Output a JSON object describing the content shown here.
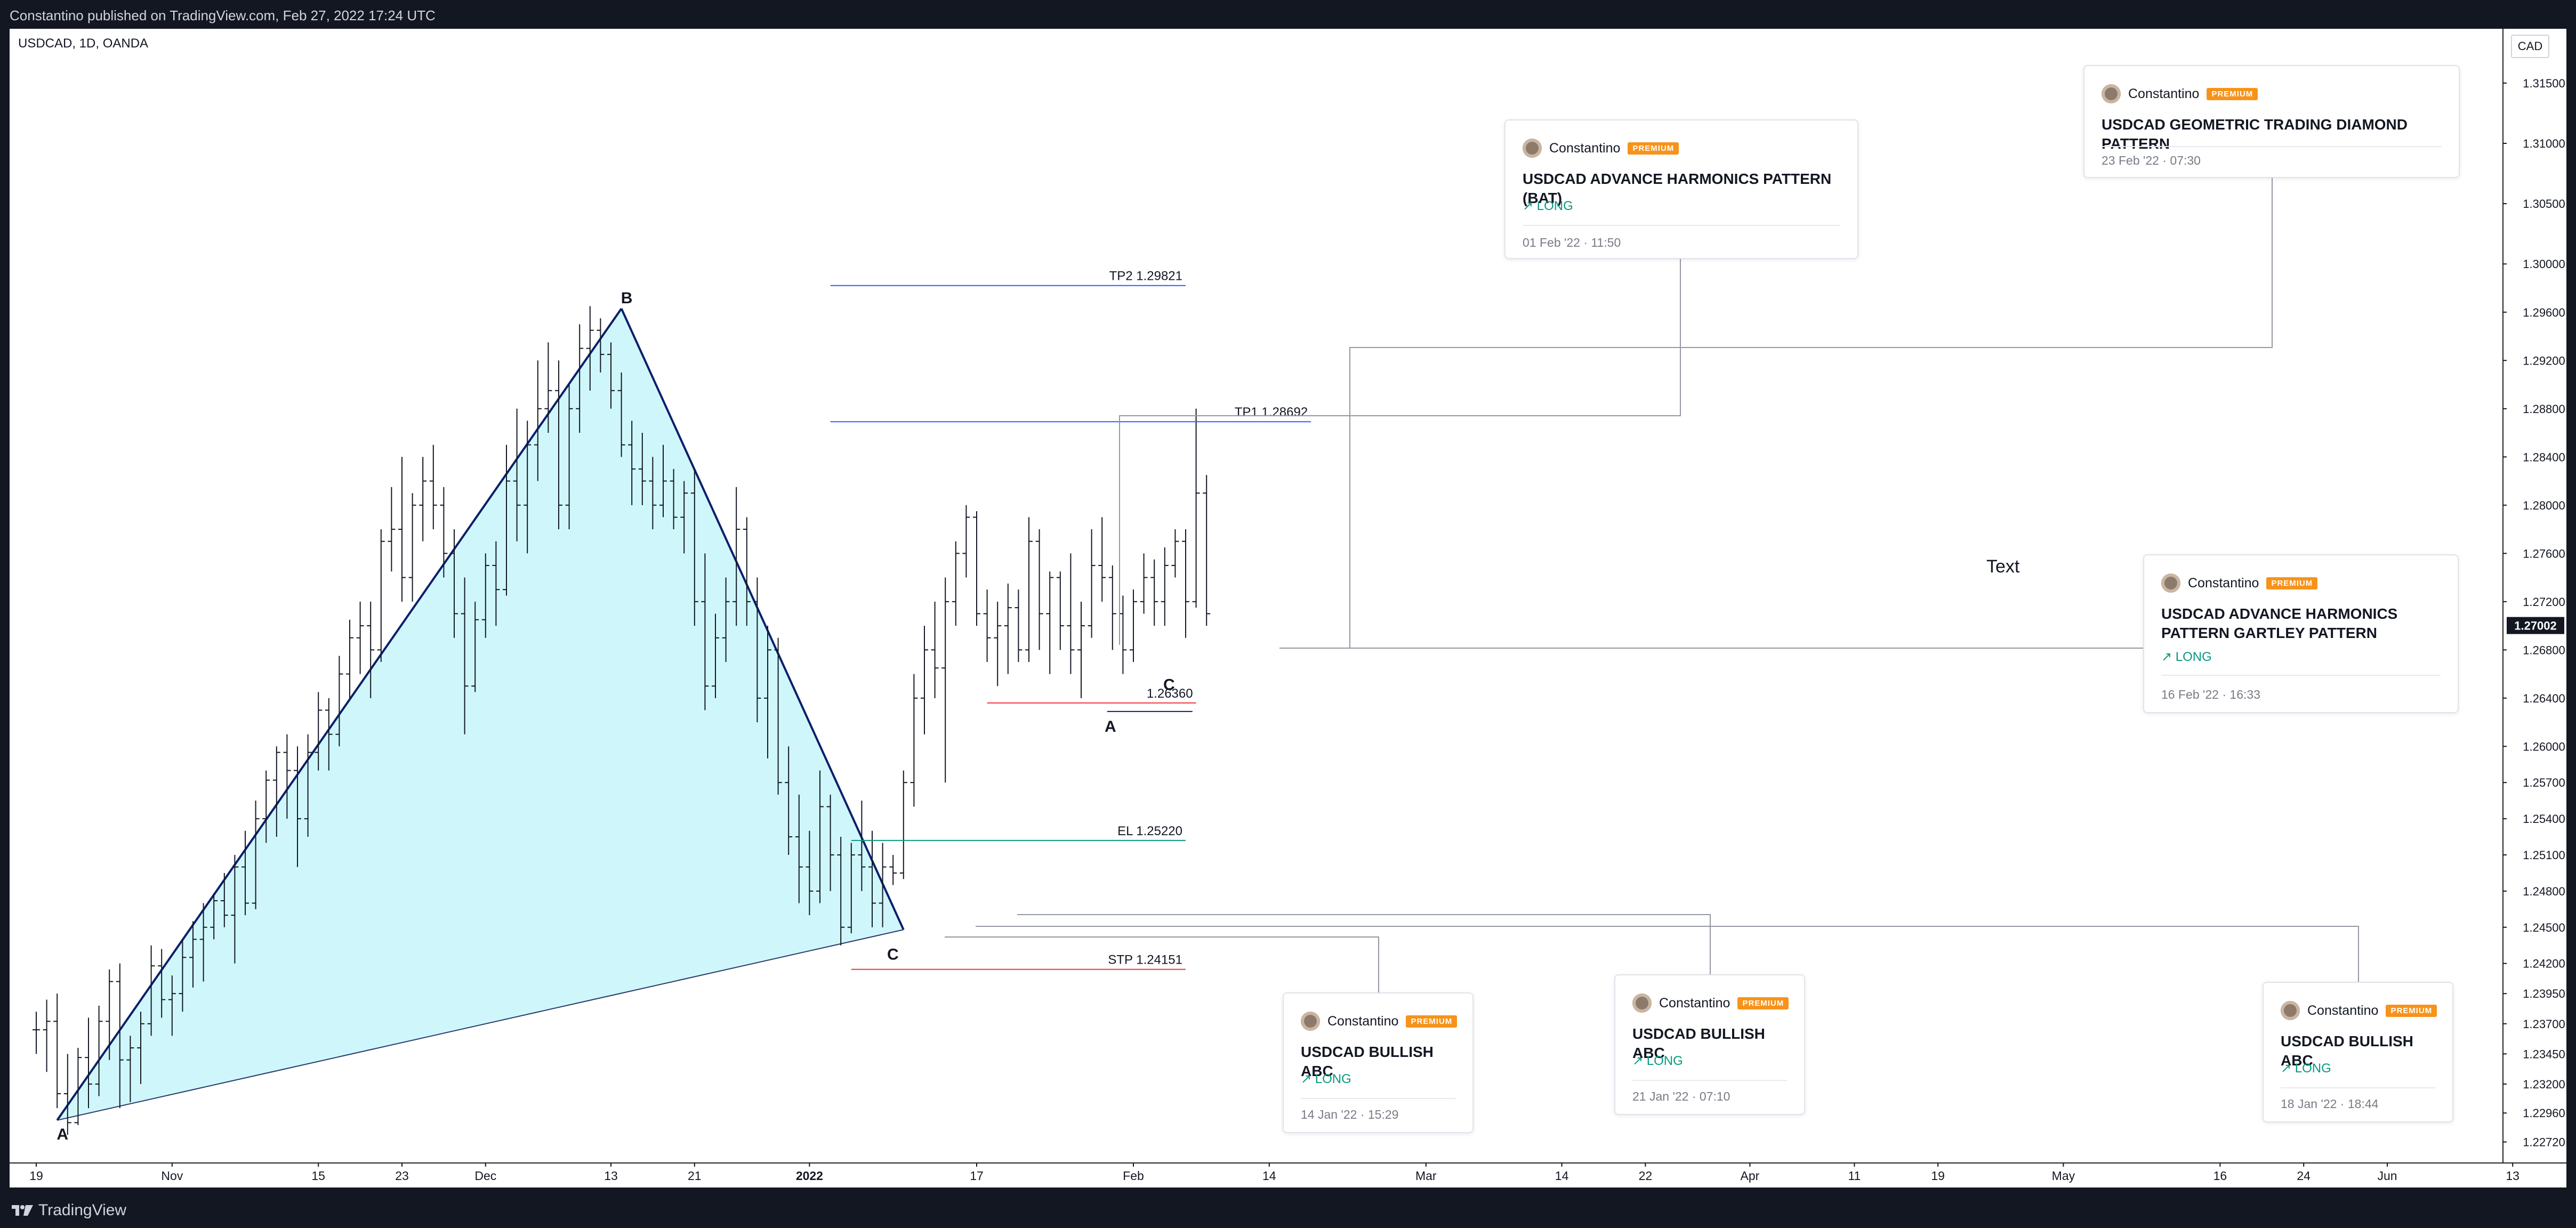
{
  "header": {
    "published_text": "Constantino published on TradingView.com, Feb 27, 2022 17:24 UTC"
  },
  "symbol": "USDCAD, 1D, OANDA",
  "currency": "CAD",
  "footer": {
    "brand": "TradingView"
  },
  "chart_data": {
    "type": "ohlc",
    "y_axis": {
      "range": [
        1.2255,
        1.3195
      ],
      "ticks": [
        "1.31500",
        "1.31000",
        "1.30500",
        "1.30000",
        "1.29600",
        "1.29200",
        "1.28800",
        "1.28400",
        "1.28000",
        "1.27600",
        "1.27200",
        "1.26800",
        "1.26400",
        "1.26000",
        "1.25700",
        "1.25400",
        "1.25100",
        "1.24800",
        "1.24500",
        "1.24200",
        "1.23950",
        "1.23700",
        "1.23450",
        "1.23200",
        "1.22960",
        "1.22720"
      ],
      "last_price": "1.27002"
    },
    "x_axis": {
      "ticks": [
        {
          "label": "19",
          "d": 0
        },
        {
          "label": "Nov",
          "d": 13
        },
        {
          "label": "15",
          "d": 27
        },
        {
          "label": "23",
          "d": 35
        },
        {
          "label": "Dec",
          "d": 43
        },
        {
          "label": "13",
          "d": 55
        },
        {
          "label": "21",
          "d": 63
        },
        {
          "label": "2022",
          "d": 74
        },
        {
          "label": "17",
          "d": 90
        },
        {
          "label": "Feb",
          "d": 105
        },
        {
          "label": "14",
          "d": 118
        },
        {
          "label": "Mar",
          "d": 133
        },
        {
          "label": "14",
          "d": 146
        },
        {
          "label": "22",
          "d": 154
        },
        {
          "label": "Apr",
          "d": 164
        },
        {
          "label": "11",
          "d": 174
        },
        {
          "label": "19",
          "d": 182
        },
        {
          "label": "May",
          "d": 194
        },
        {
          "label": "16",
          "d": 209
        },
        {
          "label": "24",
          "d": 217
        },
        {
          "label": "Jun",
          "d": 225
        },
        {
          "label": "13",
          "d": 237
        }
      ]
    },
    "bars": [
      [
        1.2365,
        1.238,
        1.2345,
        1.2365
      ],
      [
        1.2365,
        1.239,
        1.233,
        1.2372
      ],
      [
        1.2372,
        1.2395,
        1.23,
        1.2312
      ],
      [
        1.2312,
        1.2345,
        1.2278,
        1.2288
      ],
      [
        1.2288,
        1.235,
        1.2286,
        1.2342
      ],
      [
        1.2342,
        1.2375,
        1.23,
        1.232
      ],
      [
        1.232,
        1.2385,
        1.231,
        1.2372
      ],
      [
        1.2372,
        1.2415,
        1.234,
        1.2405
      ],
      [
        1.2405,
        1.242,
        1.23,
        1.234
      ],
      [
        1.234,
        1.236,
        1.2305,
        1.235
      ],
      [
        1.235,
        1.238,
        1.232,
        1.237
      ],
      [
        1.237,
        1.2435,
        1.236,
        1.2418
      ],
      [
        1.2418,
        1.2432,
        1.2375,
        1.239
      ],
      [
        1.239,
        1.241,
        1.236,
        1.2395
      ],
      [
        1.2395,
        1.244,
        1.238,
        1.2425
      ],
      [
        1.2425,
        1.2455,
        1.24,
        1.244
      ],
      [
        1.244,
        1.247,
        1.2405,
        1.245
      ],
      [
        1.245,
        1.2478,
        1.244,
        1.2472
      ],
      [
        1.2472,
        1.2495,
        1.245,
        1.246
      ],
      [
        1.246,
        1.251,
        1.242,
        1.25
      ],
      [
        1.25,
        1.253,
        1.246,
        1.247
      ],
      [
        1.247,
        1.2555,
        1.2465,
        1.254
      ],
      [
        1.254,
        1.258,
        1.252,
        1.2572
      ],
      [
        1.2572,
        1.26,
        1.2525,
        1.2595
      ],
      [
        1.2595,
        1.261,
        1.254,
        1.258
      ],
      [
        1.258,
        1.26,
        1.25,
        1.254
      ],
      [
        1.254,
        1.261,
        1.2525,
        1.2595
      ],
      [
        1.2595,
        1.2645,
        1.258,
        1.263
      ],
      [
        1.263,
        1.264,
        1.258,
        1.261
      ],
      [
        1.261,
        1.2675,
        1.26,
        1.266
      ],
      [
        1.266,
        1.2705,
        1.264,
        1.269
      ],
      [
        1.269,
        1.272,
        1.266,
        1.27
      ],
      [
        1.27,
        1.272,
        1.264,
        1.268
      ],
      [
        1.268,
        1.278,
        1.267,
        1.277
      ],
      [
        1.277,
        1.2815,
        1.2745,
        1.278
      ],
      [
        1.278,
        1.284,
        1.272,
        1.274
      ],
      [
        1.274,
        1.281,
        1.272,
        1.28
      ],
      [
        1.28,
        1.284,
        1.277,
        1.282
      ],
      [
        1.282,
        1.285,
        1.278,
        1.28
      ],
      [
        1.28,
        1.2815,
        1.274,
        1.276
      ],
      [
        1.276,
        1.278,
        1.269,
        1.271
      ],
      [
        1.271,
        1.274,
        1.261,
        1.265
      ],
      [
        1.265,
        1.272,
        1.2645,
        1.2705
      ],
      [
        1.2705,
        1.276,
        1.269,
        1.275
      ],
      [
        1.275,
        1.277,
        1.27,
        1.273
      ],
      [
        1.273,
        1.285,
        1.2725,
        1.282
      ],
      [
        1.282,
        1.288,
        1.277,
        1.28
      ],
      [
        1.28,
        1.287,
        1.276,
        1.285
      ],
      [
        1.285,
        1.292,
        1.282,
        1.288
      ],
      [
        1.288,
        1.2935,
        1.286,
        1.2895
      ],
      [
        1.2895,
        1.292,
        1.278,
        1.28
      ],
      [
        1.28,
        1.29,
        1.278,
        1.288
      ],
      [
        1.288,
        1.295,
        1.286,
        1.293
      ],
      [
        1.293,
        1.2965,
        1.2895,
        1.2945
      ],
      [
        1.2945,
        1.2955,
        1.291,
        1.2925
      ],
      [
        1.2925,
        1.2935,
        1.288,
        1.2895
      ],
      [
        1.2895,
        1.291,
        1.284,
        1.285
      ],
      [
        1.285,
        1.287,
        1.28,
        1.283
      ],
      [
        1.283,
        1.286,
        1.28,
        1.282
      ],
      [
        1.282,
        1.284,
        1.278,
        1.28
      ],
      [
        1.28,
        1.285,
        1.279,
        1.282
      ],
      [
        1.282,
        1.283,
        1.278,
        1.279
      ],
      [
        1.279,
        1.282,
        1.276,
        1.281
      ],
      [
        1.281,
        1.283,
        1.27,
        1.272
      ],
      [
        1.272,
        1.276,
        1.263,
        1.265
      ],
      [
        1.265,
        1.271,
        1.264,
        1.269
      ],
      [
        1.269,
        1.274,
        1.267,
        1.272
      ],
      [
        1.272,
        1.2815,
        1.27,
        1.278
      ],
      [
        1.278,
        1.279,
        1.27,
        1.272
      ],
      [
        1.272,
        1.274,
        1.262,
        1.264
      ],
      [
        1.264,
        1.27,
        1.259,
        1.268
      ],
      [
        1.268,
        1.269,
        1.256,
        1.257
      ],
      [
        1.257,
        1.26,
        1.251,
        1.2525
      ],
      [
        1.2525,
        1.256,
        1.247,
        1.25
      ],
      [
        1.25,
        1.253,
        1.246,
        1.248
      ],
      [
        1.248,
        1.258,
        1.247,
        1.255
      ],
      [
        1.255,
        1.256,
        1.248,
        1.251
      ],
      [
        1.251,
        1.2525,
        1.2435,
        1.245
      ],
      [
        1.245,
        1.252,
        1.2445,
        1.251
      ],
      [
        1.251,
        1.2555,
        1.248,
        1.25
      ],
      [
        1.25,
        1.253,
        1.245,
        1.247
      ],
      [
        1.247,
        1.252,
        1.245,
        1.25
      ],
      [
        1.25,
        1.251,
        1.2485,
        1.2495
      ],
      [
        1.2495,
        1.258,
        1.249,
        1.257
      ],
      [
        1.257,
        1.266,
        1.255,
        1.264
      ],
      [
        1.264,
        1.27,
        1.261,
        1.268
      ],
      [
        1.268,
        1.272,
        1.264,
        1.2665
      ],
      [
        1.2665,
        1.274,
        1.257,
        1.272
      ],
      [
        1.272,
        1.277,
        1.27,
        1.276
      ],
      [
        1.276,
        1.28,
        1.274,
        1.279
      ],
      [
        1.279,
        1.2795,
        1.27,
        1.271
      ],
      [
        1.271,
        1.273,
        1.267,
        1.269
      ],
      [
        1.269,
        1.272,
        1.265,
        1.27
      ],
      [
        1.27,
        1.2735,
        1.266,
        1.2715
      ],
      [
        1.2715,
        1.273,
        1.267,
        1.268
      ],
      [
        1.268,
        1.279,
        1.267,
        1.277
      ],
      [
        1.277,
        1.278,
        1.268,
        1.271
      ],
      [
        1.271,
        1.2745,
        1.266,
        1.274
      ],
      [
        1.274,
        1.2745,
        1.268,
        1.27
      ],
      [
        1.27,
        1.276,
        1.266,
        1.268
      ],
      [
        1.268,
        1.272,
        1.264,
        1.27
      ],
      [
        1.27,
        1.278,
        1.269,
        1.275
      ],
      [
        1.275,
        1.279,
        1.272,
        1.274
      ],
      [
        1.274,
        1.275,
        1.268,
        1.271
      ],
      [
        1.271,
        1.2725,
        1.266,
        1.268
      ],
      [
        1.268,
        1.273,
        1.267,
        1.272
      ],
      [
        1.272,
        1.276,
        1.271,
        1.274
      ],
      [
        1.274,
        1.2755,
        1.27,
        1.272
      ],
      [
        1.272,
        1.2765,
        1.27,
        1.275
      ],
      [
        1.275,
        1.278,
        1.274,
        1.277
      ],
      [
        1.277,
        1.278,
        1.269,
        1.272
      ],
      [
        1.272,
        1.288,
        1.2715,
        1.281
      ],
      [
        1.281,
        1.2825,
        1.27,
        1.271
      ]
    ],
    "levels": [
      {
        "label": "TP2 1.29821",
        "price": 1.29821,
        "color": "#2962ff",
        "d0": 76,
        "d1": 110
      },
      {
        "label": "TP1 1.28692",
        "price": 1.28692,
        "color": "#2962ff",
        "d0": 76,
        "d1": 122
      },
      {
        "label": "1.26360",
        "price": 1.2636,
        "color": "#f23645",
        "d0": 91,
        "d1": 111
      },
      {
        "label": "EL 1.25220",
        "price": 1.2522,
        "color": "#089981",
        "d0": 78,
        "d1": 110
      },
      {
        "label": "STP 1.24151",
        "price": 1.24151,
        "color": "#f23645",
        "d0": 78,
        "d1": 110
      }
    ],
    "pattern": {
      "points": [
        {
          "label": "A",
          "d": 2,
          "price": 1.229
        },
        {
          "label": "B",
          "d": 56,
          "price": 1.2963
        },
        {
          "label": "C",
          "d": 83,
          "price": 1.2448
        }
      ],
      "fill": "#cff7fb"
    },
    "pattern2": [
      {
        "label": "A",
        "d": 103,
        "price": 1.2636
      },
      {
        "label": "C",
        "d": 108,
        "price": 1.266
      }
    ],
    "annotations": [
      {
        "text": "Text"
      }
    ]
  },
  "ideas": [
    {
      "author": "Constantino",
      "badge": "PREMIUM",
      "title": "USDCAD ADVANCE HARMONICS PATTERN (BAT)",
      "direction": "↗ LONG",
      "date": "01 Feb '22 · 11:50"
    },
    {
      "author": "Constantino",
      "badge": "PREMIUM",
      "title": "USDCAD GEOMETRIC TRADING DIAMOND PATTERN",
      "direction": "",
      "date": "23 Feb '22 · 07:30"
    },
    {
      "author": "Constantino",
      "badge": "PREMIUM",
      "title": "USDCAD  ADVANCE HARMONICS PATTERN GARTLEY PATTERN",
      "direction": "↗ LONG",
      "date": "16 Feb '22 · 16:33"
    },
    {
      "author": "Constantino",
      "badge": "PREMIUM",
      "title": "USDCAD BULLISH ABC",
      "direction": "↗ LONG",
      "date": "14 Jan '22 · 15:29"
    },
    {
      "author": "Constantino",
      "badge": "PREMIUM",
      "title": "USDCAD BULLISH ABC",
      "direction": "↗ LONG",
      "date": "21 Jan '22 · 07:10"
    },
    {
      "author": "Constantino",
      "badge": "PREMIUM",
      "title": "USDCAD BULLISH ABC",
      "direction": "↗ LONG",
      "date": "18 Jan '22 · 18:44"
    }
  ]
}
